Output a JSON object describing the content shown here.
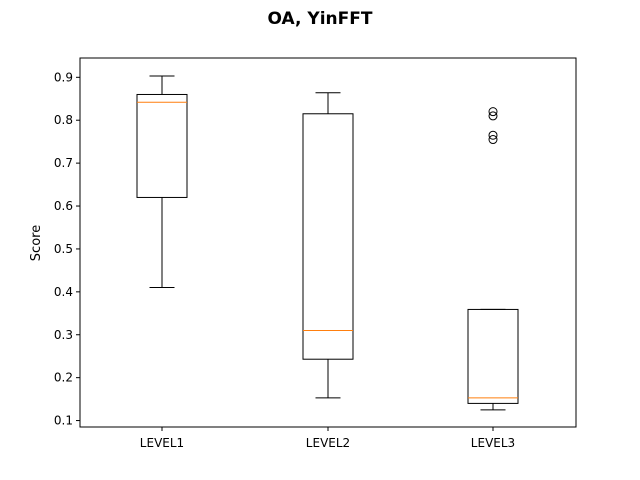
{
  "chart_data": {
    "type": "box",
    "title": "OA, YinFFT",
    "xlabel": "",
    "ylabel": "Score",
    "ylim": [
      0.085,
      0.945
    ],
    "yticks": [
      0.1,
      0.2,
      0.3,
      0.4,
      0.5,
      0.6,
      0.7,
      0.8,
      0.9
    ],
    "ytick_labels": [
      "0.1",
      "0.2",
      "0.3",
      "0.4",
      "0.5",
      "0.6",
      "0.7",
      "0.8",
      "0.9"
    ],
    "grid": false,
    "categories": [
      "LEVEL1",
      "LEVEL2",
      "LEVEL3"
    ],
    "boxes": [
      {
        "whisker_low": 0.41,
        "q1": 0.62,
        "median": 0.842,
        "q3": 0.86,
        "whisker_high": 0.903,
        "outliers": []
      },
      {
        "whisker_low": 0.153,
        "q1": 0.243,
        "median": 0.31,
        "q3": 0.815,
        "whisker_high": 0.864,
        "outliers": []
      },
      {
        "whisker_low": 0.125,
        "q1": 0.14,
        "median": 0.153,
        "q3": 0.359,
        "whisker_high": 0.359,
        "outliers": [
          0.755,
          0.765,
          0.81,
          0.82
        ]
      }
    ],
    "colors": {
      "box": "#000000",
      "median": "#ff7f0e",
      "axes": "#000000"
    }
  }
}
